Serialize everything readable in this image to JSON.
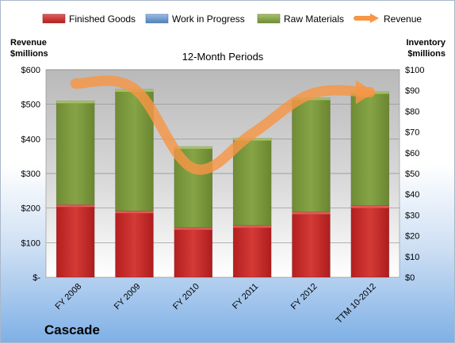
{
  "chart_data": {
    "type": "bar",
    "subtitle": "12-Month Periods",
    "company": "Cascade",
    "categories": [
      "FY 2008",
      "FY 2009",
      "FY 2010",
      "FY 2011",
      "FY 2012",
      "TTM 10-2012"
    ],
    "left_axis": {
      "title_line1": "Revenue",
      "title_line2": "$millions",
      "ticks": [
        "$-",
        "$100",
        "$200",
        "$300",
        "$400",
        "$500",
        "$600"
      ],
      "ylim": [
        0,
        600
      ]
    },
    "right_axis": {
      "title_line1": "Inventory",
      "title_line2": "$millions",
      "ticks": [
        "$0",
        "$10",
        "$20",
        "$30",
        "$40",
        "$50",
        "$60",
        "$70",
        "$80",
        "$90",
        "$100"
      ],
      "ylim": [
        0,
        100
      ]
    },
    "series": [
      {
        "name": "Finished Goods",
        "axis": "right",
        "kind": "stacked-bar",
        "color": "#c0282a",
        "values": [
          35,
          32,
          24,
          25,
          31.5,
          34.5
        ]
      },
      {
        "name": "Work in Progress",
        "axis": "right",
        "kind": "stacked-bar",
        "color": "#4f81bd",
        "values": [
          0,
          0,
          0,
          0,
          0,
          0
        ]
      },
      {
        "name": "Raw Materials",
        "axis": "right",
        "kind": "stacked-bar",
        "color": "#77933c",
        "values": [
          50,
          58.5,
          39,
          42,
          55,
          55
        ]
      },
      {
        "name": "Revenue",
        "axis": "left",
        "kind": "line",
        "color": "#f79646",
        "values": [
          560,
          545,
          315,
          415,
          530,
          535
        ]
      }
    ],
    "grid": true,
    "legend_position": "top"
  }
}
